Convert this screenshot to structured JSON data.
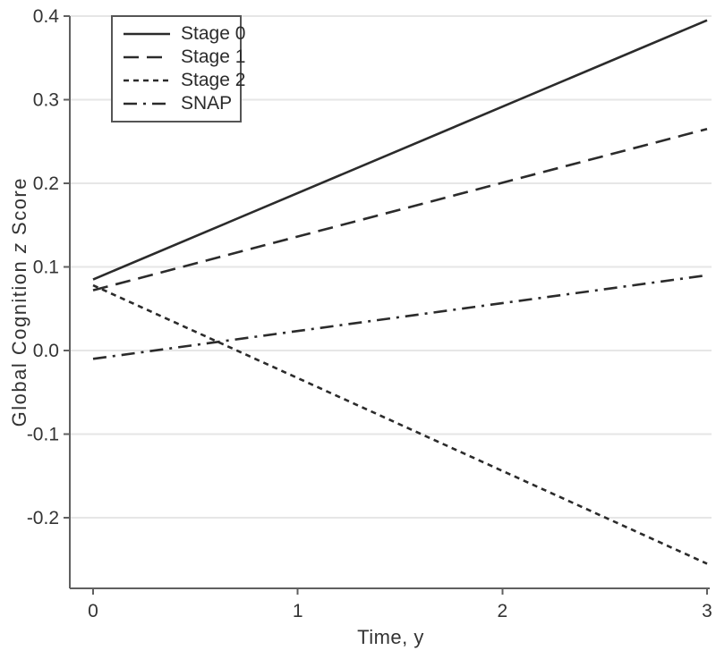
{
  "chart_data": {
    "type": "line",
    "title": "",
    "xlabel": "Time, y",
    "ylabel": "Global Cognition z Score",
    "ylabel_parts": {
      "prefix": "Global Cognition ",
      "italic": "z",
      "suffix": " Score"
    },
    "x": [
      0,
      3
    ],
    "series": [
      {
        "name": "Stage 0",
        "dash": "solid",
        "values": [
          0.085,
          0.395
        ]
      },
      {
        "name": "Stage 1",
        "dash": "long-dash",
        "values": [
          0.072,
          0.265
        ]
      },
      {
        "name": "Stage 2",
        "dash": "short-dash",
        "values": [
          0.078,
          -0.255
        ]
      },
      {
        "name": "SNAP",
        "dash": "dash-dot",
        "values": [
          -0.01,
          0.09
        ]
      }
    ],
    "x_ticks": [
      0,
      1,
      2,
      3
    ],
    "x_tick_labels": [
      "0",
      "1",
      "2",
      "3"
    ],
    "y_ticks": [
      0.4,
      0.3,
      0.2,
      0.1,
      0.0,
      -0.1,
      -0.2
    ],
    "y_tick_labels": [
      "0.4",
      "0.3",
      "0.2",
      "0.1",
      "0.0",
      "-0.1",
      "-0.2"
    ],
    "xlim": [
      -0.115,
      3.015
    ],
    "ylim": [
      -0.285,
      0.4
    ],
    "grid": "horizontal",
    "legend_position": "top-left",
    "colors": {
      "line": "#2b2b2b",
      "grid": "#e6e6e6",
      "axis": "#606060",
      "text": "#333333",
      "legend_border": "#555555",
      "background": "#ffffff"
    }
  }
}
